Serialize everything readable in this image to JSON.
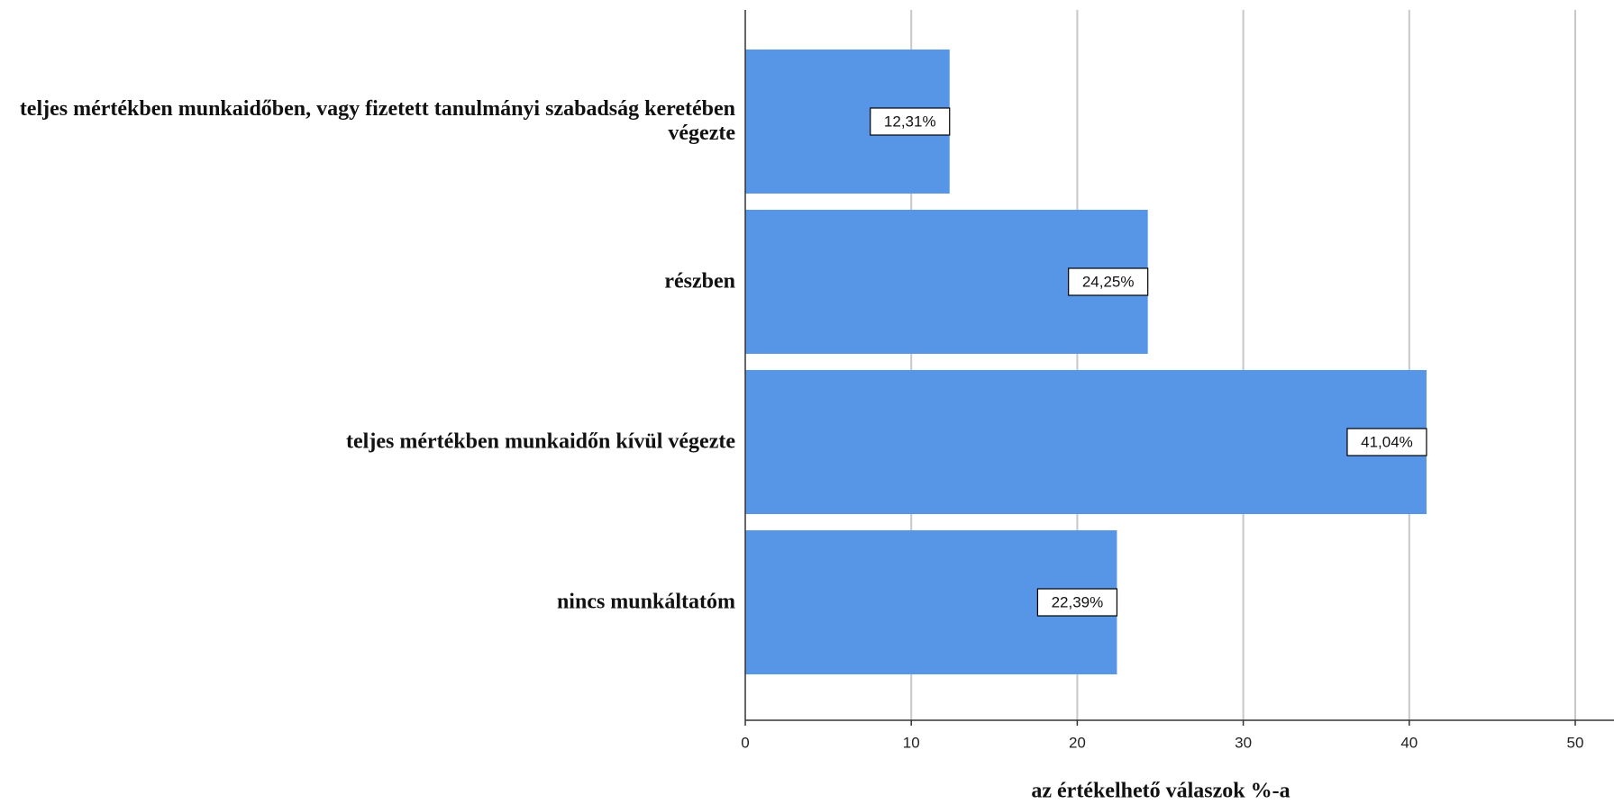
{
  "chart_data": {
    "type": "barh",
    "x_label": "az értékelhető válaszok %-a",
    "categories": [
      "teljes mértékben munkaidőben, vagy fizetett tanulmányi szabadság keretében végezte",
      "részben",
      "teljes mértékben munkaidőn kívül végezte",
      "nincs munkáltatóm"
    ],
    "values": [
      12.31,
      24.25,
      41.04,
      22.39
    ],
    "value_labels": [
      "12,31%",
      "24,25%",
      "41,04%",
      "22,39%"
    ],
    "color": "#5795e6",
    "xlim": [
      0,
      52
    ],
    "xticks": [
      0,
      10,
      20,
      30,
      40,
      50
    ],
    "grid": true
  }
}
